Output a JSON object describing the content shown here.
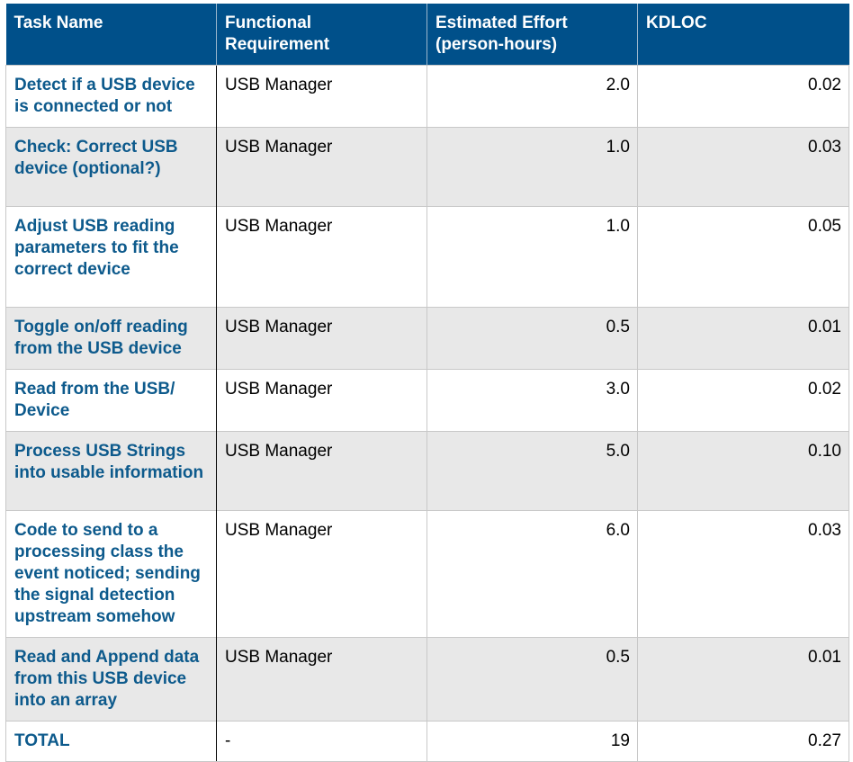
{
  "headers": {
    "task": "Task Name",
    "requirement": "Functional Requirement",
    "effort": "Estimated Effort (person-hours)",
    "kdloc": "KDLOC"
  },
  "rows": [
    {
      "task": "Detect if a USB device is connected or not",
      "requirement": "USB Manager",
      "effort": "2.0",
      "kdloc": "0.02"
    },
    {
      "task": "Check: Correct USB device (optional?)",
      "requirement": "USB Manager",
      "effort": "1.0",
      "kdloc": "0.03"
    },
    {
      "task": "Adjust USB reading parameters to fit the correct device",
      "requirement": "USB Manager",
      "effort": "1.0",
      "kdloc": "0.05"
    },
    {
      "task": "Toggle on/off reading from the USB device",
      "requirement": "USB Manager",
      "effort": "0.5",
      "kdloc": "0.01"
    },
    {
      "task": "Read from the USB/ Device",
      "requirement": "USB Manager",
      "effort": "3.0",
      "kdloc": "0.02"
    },
    {
      "task": "Process USB Strings into usable information",
      "requirement": "USB Manager",
      "effort": "5.0",
      "kdloc": "0.10"
    },
    {
      "task": "Code to send to a processing class the event noticed; sending the signal detection upstream somehow",
      "requirement": "USB Manager",
      "effort": "6.0",
      "kdloc": "0.03"
    },
    {
      "task": "Read and Append data from this USB device into an array",
      "requirement": "USB Manager",
      "effort": "0.5",
      "kdloc": "0.01"
    }
  ],
  "total": {
    "task": "TOTAL",
    "requirement": "-",
    "effort": "19",
    "kdloc": "0.27"
  }
}
